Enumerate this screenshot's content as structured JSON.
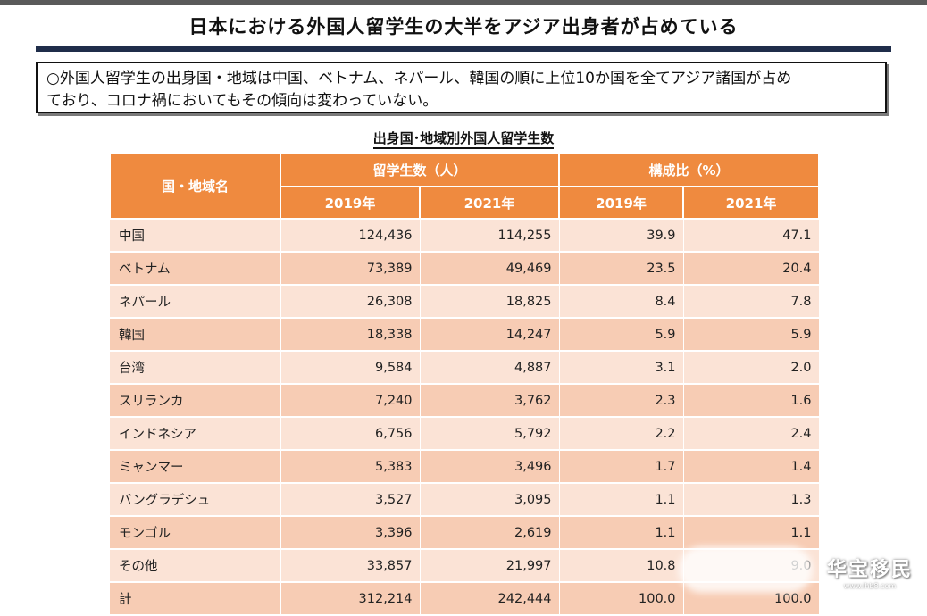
{
  "page": {
    "title": "日本における外国人留学生の大半をアジア出身者が占めている",
    "summary_line1": "○外国人留学生の出身国・地域は中国、ベトナム、ネパール、韓国の順に上位10か国を全てアジア諸国が占め",
    "summary_line2": "ており、コロナ禍においてもその傾向は変わっていない。"
  },
  "table": {
    "title": "出身国･地域別外国人留学生数",
    "header_region": "国・地域名",
    "header_students": "留学生数（人）",
    "header_ratio": "構成比（%）",
    "year_2019": "2019年",
    "year_2021": "2021年",
    "rows": [
      {
        "name": "中国",
        "s2019": "124,436",
        "s2021": "114,255",
        "r2019": "39.9",
        "r2021": "47.1"
      },
      {
        "name": "ベトナム",
        "s2019": "73,389",
        "s2021": "49,469",
        "r2019": "23.5",
        "r2021": "20.4"
      },
      {
        "name": "ネパール",
        "s2019": "26,308",
        "s2021": "18,825",
        "r2019": "8.4",
        "r2021": "7.8"
      },
      {
        "name": "韓国",
        "s2019": "18,338",
        "s2021": "14,247",
        "r2019": "5.9",
        "r2021": "5.9"
      },
      {
        "name": "台湾",
        "s2019": "9,584",
        "s2021": "4,887",
        "r2019": "3.1",
        "r2021": "2.0"
      },
      {
        "name": "スリランカ",
        "s2019": "7,240",
        "s2021": "3,762",
        "r2019": "2.3",
        "r2021": "1.6"
      },
      {
        "name": "インドネシア",
        "s2019": "6,756",
        "s2021": "5,792",
        "r2019": "2.2",
        "r2021": "2.4"
      },
      {
        "name": "ミャンマー",
        "s2019": "5,383",
        "s2021": "3,496",
        "r2019": "1.7",
        "r2021": "1.4"
      },
      {
        "name": "バングラデシュ",
        "s2019": "3,527",
        "s2021": "3,095",
        "r2019": "1.1",
        "r2021": "1.3"
      },
      {
        "name": "モンゴル",
        "s2019": "3,396",
        "s2021": "2,619",
        "r2019": "1.1",
        "r2021": "1.1"
      },
      {
        "name": "その他",
        "s2019": "33,857",
        "s2021": "21,997",
        "r2019": "10.8",
        "r2021": "9.0"
      },
      {
        "name": "計",
        "s2019": "312,214",
        "s2021": "242,444",
        "r2019": "100.0",
        "r2021": "100.0"
      }
    ]
  },
  "watermark": {
    "logo_text": "华宝移民",
    "url": "www.ihb8.com"
  }
}
